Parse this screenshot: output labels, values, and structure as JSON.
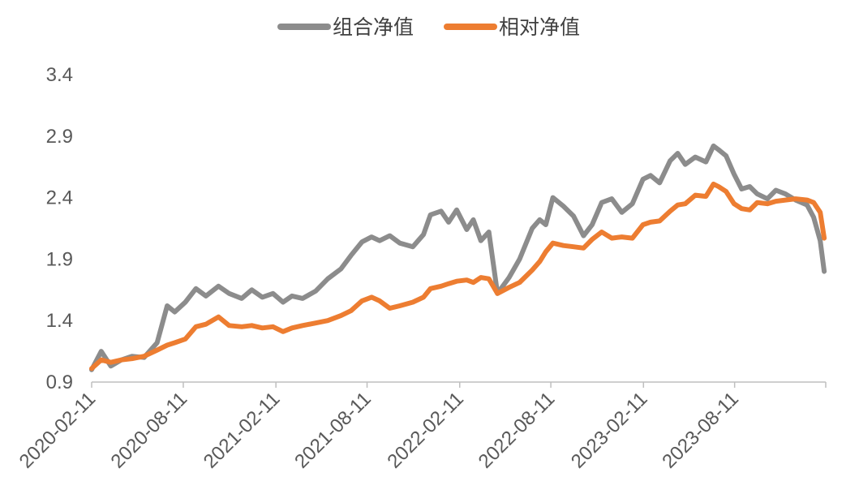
{
  "chart_data": {
    "type": "line",
    "title": "",
    "xlabel": "",
    "ylabel": "",
    "ylim": [
      0.9,
      3.4
    ],
    "yticks": [
      0.9,
      1.4,
      1.9,
      2.4,
      2.9,
      3.4
    ],
    "ytick_labels": [
      "0.9",
      "1.4",
      "1.9",
      "2.4",
      "2.9",
      "3.4"
    ],
    "xlim": [
      "2020-02-11",
      "2024-02-08"
    ],
    "xticks": [
      "2020-02-11",
      "2020-08-11",
      "2021-02-11",
      "2021-08-11",
      "2022-02-11",
      "2022-08-11",
      "2023-02-11",
      "2023-08-11"
    ],
    "grid": false,
    "legend": "top-center",
    "series": [
      {
        "name": "组合净值",
        "color": "#8C8C8C",
        "points": [
          [
            "2020-02-11",
            1.0
          ],
          [
            "2020-03-01",
            1.15
          ],
          [
            "2020-03-20",
            1.03
          ],
          [
            "2020-04-10",
            1.08
          ],
          [
            "2020-05-01",
            1.11
          ],
          [
            "2020-05-25",
            1.1
          ],
          [
            "2020-06-20",
            1.22
          ],
          [
            "2020-07-10",
            1.52
          ],
          [
            "2020-07-25",
            1.47
          ],
          [
            "2020-08-15",
            1.55
          ],
          [
            "2020-09-05",
            1.66
          ],
          [
            "2020-09-25",
            1.6
          ],
          [
            "2020-10-20",
            1.68
          ],
          [
            "2020-11-10",
            1.62
          ],
          [
            "2020-12-05",
            1.58
          ],
          [
            "2020-12-25",
            1.65
          ],
          [
            "2021-01-15",
            1.59
          ],
          [
            "2021-02-05",
            1.62
          ],
          [
            "2021-02-25",
            1.55
          ],
          [
            "2021-03-15",
            1.6
          ],
          [
            "2021-04-05",
            1.58
          ],
          [
            "2021-05-01",
            1.64
          ],
          [
            "2021-05-25",
            1.74
          ],
          [
            "2021-06-20",
            1.82
          ],
          [
            "2021-07-10",
            1.93
          ],
          [
            "2021-08-01",
            2.04
          ],
          [
            "2021-08-20",
            2.08
          ],
          [
            "2021-09-05",
            2.05
          ],
          [
            "2021-09-25",
            2.09
          ],
          [
            "2021-10-15",
            2.03
          ],
          [
            "2021-11-10",
            2.0
          ],
          [
            "2021-12-01",
            2.1
          ],
          [
            "2021-12-15",
            2.26
          ],
          [
            "2022-01-05",
            2.29
          ],
          [
            "2022-01-20",
            2.2
          ],
          [
            "2022-02-05",
            2.3
          ],
          [
            "2022-02-25",
            2.14
          ],
          [
            "2022-03-10",
            2.22
          ],
          [
            "2022-03-25",
            2.05
          ],
          [
            "2022-04-10",
            2.12
          ],
          [
            "2022-04-27",
            1.62
          ],
          [
            "2022-05-20",
            1.75
          ],
          [
            "2022-06-10",
            1.9
          ],
          [
            "2022-07-05",
            2.15
          ],
          [
            "2022-07-20",
            2.22
          ],
          [
            "2022-08-01",
            2.18
          ],
          [
            "2022-08-15",
            2.4
          ],
          [
            "2022-09-05",
            2.33
          ],
          [
            "2022-09-25",
            2.25
          ],
          [
            "2022-10-15",
            2.09
          ],
          [
            "2022-11-01",
            2.18
          ],
          [
            "2022-11-20",
            2.36
          ],
          [
            "2022-12-10",
            2.39
          ],
          [
            "2022-12-30",
            2.28
          ],
          [
            "2023-01-20",
            2.35
          ],
          [
            "2023-02-10",
            2.55
          ],
          [
            "2023-02-25",
            2.58
          ],
          [
            "2023-03-15",
            2.52
          ],
          [
            "2023-04-05",
            2.7
          ],
          [
            "2023-04-20",
            2.76
          ],
          [
            "2023-05-05",
            2.67
          ],
          [
            "2023-05-25",
            2.73
          ],
          [
            "2023-06-15",
            2.69
          ],
          [
            "2023-06-30",
            2.82
          ],
          [
            "2023-07-10",
            2.79
          ],
          [
            "2023-07-25",
            2.74
          ],
          [
            "2023-08-10",
            2.59
          ],
          [
            "2023-08-25",
            2.47
          ],
          [
            "2023-09-10",
            2.49
          ],
          [
            "2023-09-25",
            2.43
          ],
          [
            "2023-10-15",
            2.39
          ],
          [
            "2023-11-01",
            2.46
          ],
          [
            "2023-11-20",
            2.43
          ],
          [
            "2023-12-10",
            2.38
          ],
          [
            "2024-01-02",
            2.34
          ],
          [
            "2024-01-15",
            2.24
          ],
          [
            "2024-01-28",
            2.05
          ],
          [
            "2024-02-05",
            1.8
          ]
        ]
      },
      {
        "name": "相对净值",
        "color": "#ED7D31",
        "points": [
          [
            "2020-02-11",
            1.01
          ],
          [
            "2020-03-01",
            1.08
          ],
          [
            "2020-03-20",
            1.06
          ],
          [
            "2020-04-10",
            1.08
          ],
          [
            "2020-05-01",
            1.09
          ],
          [
            "2020-05-25",
            1.11
          ],
          [
            "2020-06-20",
            1.16
          ],
          [
            "2020-07-10",
            1.2
          ],
          [
            "2020-07-25",
            1.22
          ],
          [
            "2020-08-15",
            1.25
          ],
          [
            "2020-09-05",
            1.35
          ],
          [
            "2020-09-25",
            1.37
          ],
          [
            "2020-10-20",
            1.43
          ],
          [
            "2020-11-10",
            1.36
          ],
          [
            "2020-12-05",
            1.35
          ],
          [
            "2020-12-25",
            1.36
          ],
          [
            "2021-01-15",
            1.34
          ],
          [
            "2021-02-05",
            1.35
          ],
          [
            "2021-02-25",
            1.31
          ],
          [
            "2021-03-15",
            1.34
          ],
          [
            "2021-04-05",
            1.36
          ],
          [
            "2021-05-01",
            1.38
          ],
          [
            "2021-05-25",
            1.4
          ],
          [
            "2021-06-20",
            1.44
          ],
          [
            "2021-07-10",
            1.48
          ],
          [
            "2021-08-01",
            1.56
          ],
          [
            "2021-08-20",
            1.59
          ],
          [
            "2021-09-05",
            1.56
          ],
          [
            "2021-09-25",
            1.5
          ],
          [
            "2021-10-15",
            1.52
          ],
          [
            "2021-11-10",
            1.55
          ],
          [
            "2021-12-01",
            1.59
          ],
          [
            "2021-12-15",
            1.66
          ],
          [
            "2022-01-05",
            1.68
          ],
          [
            "2022-01-20",
            1.7
          ],
          [
            "2022-02-05",
            1.72
          ],
          [
            "2022-02-25",
            1.73
          ],
          [
            "2022-03-10",
            1.71
          ],
          [
            "2022-03-25",
            1.75
          ],
          [
            "2022-04-10",
            1.74
          ],
          [
            "2022-04-27",
            1.62
          ],
          [
            "2022-05-20",
            1.67
          ],
          [
            "2022-06-10",
            1.71
          ],
          [
            "2022-07-05",
            1.81
          ],
          [
            "2022-07-20",
            1.88
          ],
          [
            "2022-08-01",
            1.96
          ],
          [
            "2022-08-15",
            2.03
          ],
          [
            "2022-09-05",
            2.01
          ],
          [
            "2022-09-25",
            2.0
          ],
          [
            "2022-10-15",
            1.99
          ],
          [
            "2022-11-01",
            2.06
          ],
          [
            "2022-11-20",
            2.12
          ],
          [
            "2022-12-10",
            2.07
          ],
          [
            "2022-12-30",
            2.08
          ],
          [
            "2023-01-20",
            2.07
          ],
          [
            "2023-02-10",
            2.18
          ],
          [
            "2023-02-25",
            2.2
          ],
          [
            "2023-03-15",
            2.21
          ],
          [
            "2023-04-05",
            2.29
          ],
          [
            "2023-04-20",
            2.34
          ],
          [
            "2023-05-05",
            2.35
          ],
          [
            "2023-05-25",
            2.42
          ],
          [
            "2023-06-15",
            2.41
          ],
          [
            "2023-06-30",
            2.51
          ],
          [
            "2023-07-10",
            2.49
          ],
          [
            "2023-07-25",
            2.45
          ],
          [
            "2023-08-10",
            2.35
          ],
          [
            "2023-08-25",
            2.31
          ],
          [
            "2023-09-10",
            2.3
          ],
          [
            "2023-09-25",
            2.36
          ],
          [
            "2023-10-15",
            2.35
          ],
          [
            "2023-11-01",
            2.37
          ],
          [
            "2023-11-20",
            2.38
          ],
          [
            "2023-12-10",
            2.39
          ],
          [
            "2024-01-02",
            2.38
          ],
          [
            "2024-01-15",
            2.36
          ],
          [
            "2024-01-28",
            2.28
          ],
          [
            "2024-02-05",
            2.07
          ]
        ]
      }
    ]
  }
}
